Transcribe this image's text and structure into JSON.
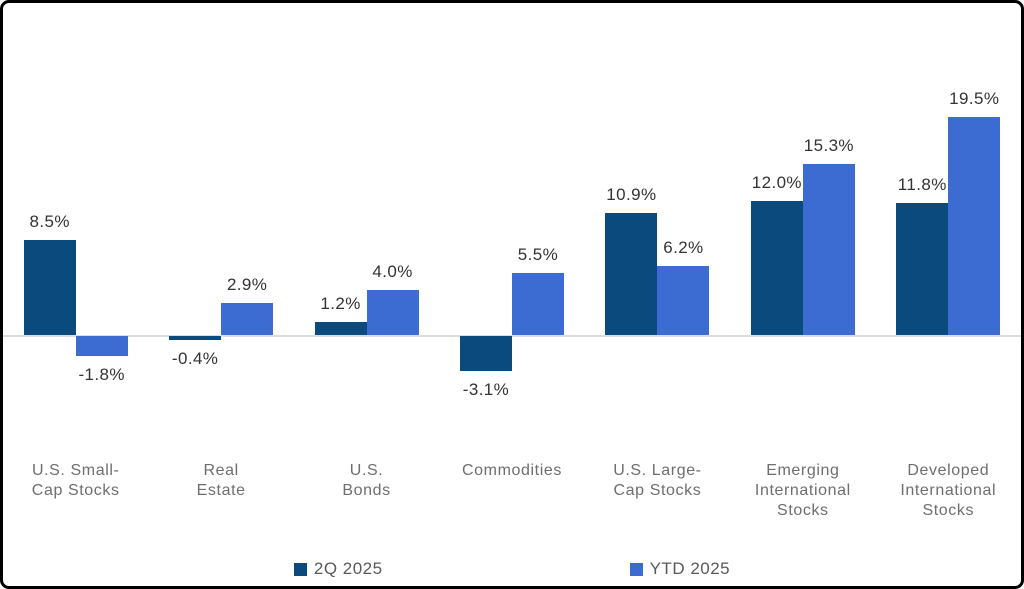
{
  "chart_data": {
    "type": "bar",
    "title": "",
    "xlabel": "",
    "ylabel": "",
    "grid": false,
    "legend_position": "bottom",
    "baseline_value": 0,
    "value_suffix": "%",
    "categories": [
      "U.S. Small-\nCap Stocks",
      "Real\nEstate",
      "U.S.\nBonds",
      "Commodities",
      "U.S. Large-\nCap Stocks",
      "Emerging\nInternational\nStocks",
      "Developed\nInternational\nStocks"
    ],
    "series": [
      {
        "name": "2Q 2025",
        "color": "#0B4A7C",
        "values": [
          8.5,
          -0.4,
          1.2,
          -3.1,
          10.9,
          12.0,
          11.8
        ]
      },
      {
        "name": "YTD 2025",
        "color": "#3C6BD2",
        "values": [
          -1.8,
          2.9,
          4.0,
          5.5,
          6.2,
          15.3,
          19.5
        ]
      }
    ]
  },
  "colors": {
    "value_label": "#333333",
    "category_label": "#6E6E6E",
    "legend_label": "#595959",
    "zero_line": "#DCDCDC",
    "frame_border": "#000000",
    "background": "#FFFFFF"
  }
}
